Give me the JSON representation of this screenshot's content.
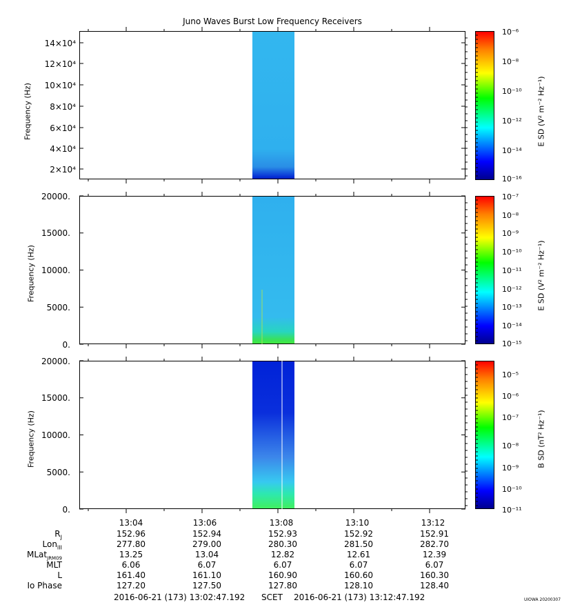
{
  "title": "Juno Waves Burst Low Frequency Receivers",
  "panels": [
    {
      "ylabel": "Frequency (Hz)",
      "yticks": [
        "14×10⁴",
        "12×10⁴",
        "10×10⁴",
        "8×10⁴",
        "6×10⁴",
        "4×10⁴",
        "2×10⁴"
      ],
      "cbar_label": "E SD (V² m⁻² Hz⁻¹)",
      "cbar_ticks": [
        "10⁻⁶",
        "10⁻⁸",
        "10⁻¹⁰",
        "10⁻¹²",
        "10⁻¹⁴",
        "10⁻¹⁶"
      ]
    },
    {
      "ylabel": "Frequency (Hz)",
      "yticks": [
        "20000.",
        "15000.",
        "10000.",
        "5000.",
        "0."
      ],
      "cbar_label": "E SD (V² m⁻² Hz⁻¹)",
      "cbar_ticks": [
        "10⁻⁷",
        "10⁻⁸",
        "10⁻⁹",
        "10⁻¹⁰",
        "10⁻¹¹",
        "10⁻¹²",
        "10⁻¹³",
        "10⁻¹⁴",
        "10⁻¹⁵"
      ]
    },
    {
      "ylabel": "Frequency (Hz)",
      "yticks": [
        "20000.",
        "15000.",
        "10000.",
        "5000.",
        "0."
      ],
      "cbar_label": "B SD (nT² Hz⁻¹)",
      "cbar_ticks": [
        "10⁻⁵",
        "10⁻⁶",
        "10⁻⁷",
        "10⁻⁸",
        "10⁻⁹",
        "10⁻¹⁰",
        "10⁻¹¹"
      ]
    }
  ],
  "xticks": [
    "13:04",
    "13:06",
    "13:08",
    "13:10",
    "13:12"
  ],
  "ephemeris": {
    "labels": [
      "R_J",
      "Lon_III",
      "MLat_JRM09",
      "MLT",
      "L",
      "Io Phase"
    ],
    "rows": [
      [
        "152.96",
        "152.94",
        "152.93",
        "152.92",
        "152.91"
      ],
      [
        "277.80",
        "279.00",
        "280.30",
        "281.50",
        "282.70"
      ],
      [
        "13.25",
        "13.04",
        "12.82",
        "12.61",
        "12.39"
      ],
      [
        "6.06",
        "6.07",
        "6.07",
        "6.07",
        "6.07"
      ],
      [
        "161.40",
        "161.10",
        "160.90",
        "160.60",
        "160.30"
      ],
      [
        "127.20",
        "127.50",
        "127.80",
        "128.10",
        "128.40"
      ]
    ]
  },
  "footer": {
    "start": "2016-06-21 (173) 13:02:47.192",
    "mid": "SCET",
    "end": "2016-06-21 (173) 13:12:47.192"
  },
  "stamp": "UIOWA 20200307",
  "chart_data": [
    {
      "type": "heatmap",
      "title": "Juno Waves Burst Low Frequency Receivers",
      "ylabel": "Frequency (Hz)",
      "ylim": [
        10000,
        150000
      ],
      "xlim": [
        "13:02:47",
        "13:12:47"
      ],
      "burst_interval": [
        "13:07:20",
        "13:08:25"
      ],
      "colorbar": {
        "label": "E SD (V² m⁻² Hz⁻¹)",
        "range": [
          1e-16,
          1e-06
        ],
        "scale": "log"
      }
    },
    {
      "type": "heatmap",
      "ylabel": "Frequency (Hz)",
      "ylim": [
        0,
        20000
      ],
      "xlim": [
        "13:02:47",
        "13:12:47"
      ],
      "burst_interval": [
        "13:07:20",
        "13:08:25"
      ],
      "colorbar": {
        "label": "E SD (V² m⁻² Hz⁻¹)",
        "range": [
          1e-15,
          1e-07
        ],
        "scale": "log"
      }
    },
    {
      "type": "heatmap",
      "ylabel": "Frequency (Hz)",
      "ylim": [
        0,
        20000
      ],
      "xlim": [
        "13:02:47",
        "13:12:47"
      ],
      "burst_interval": [
        "13:07:20",
        "13:08:25"
      ],
      "colorbar": {
        "label": "B SD (nT² Hz⁻¹)",
        "range": [
          1e-11,
          0.0001
        ],
        "scale": "log"
      }
    }
  ]
}
